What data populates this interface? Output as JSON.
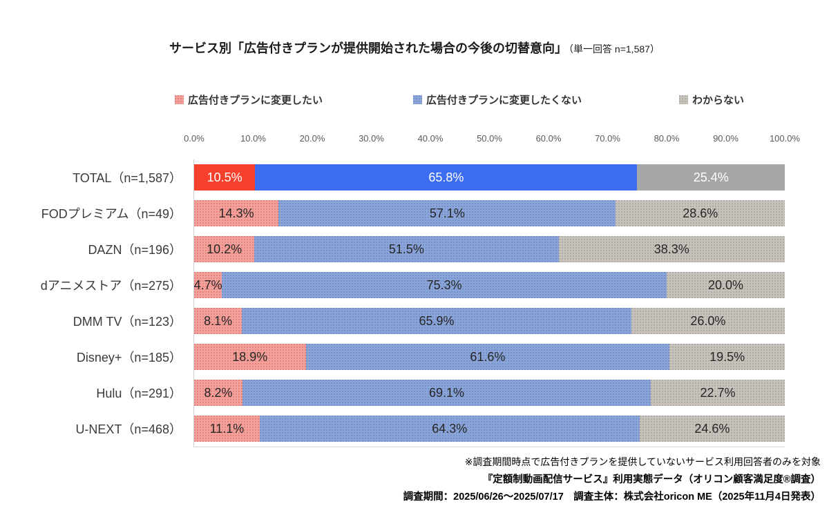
{
  "title": {
    "main": "サービス別「広告付きプランが提供開始された場合の今後の切替意向」",
    "suffix": "（単一回答 n=1,587）"
  },
  "legend": [
    {
      "key": "want",
      "label": "広告付きプランに変更したい"
    },
    {
      "key": "not_want",
      "label": "広告付きプランに変更したくない"
    },
    {
      "key": "unknown",
      "label": "わからない"
    }
  ],
  "colors": {
    "want_solid": "#f8412c",
    "not_want_solid": "#3c6cf0",
    "unknown_solid": "#a6a6a6",
    "want_light": "#f2a29d",
    "want_light_dot": "#e97f78",
    "not_want_light": "#8ca5d8",
    "not_want_light_dot": "#7290c9",
    "unknown_light": "#c7c3bc",
    "unknown_light_dot": "#aeaaa2"
  },
  "chart_data": {
    "type": "bar",
    "stacked": true,
    "orientation": "horizontal",
    "title": "サービス別「広告付きプランが提供開始された場合の今後の切替意向」（単一回答 n=1,587）",
    "highlight_category_index": 0,
    "x_axis": {
      "min": 0,
      "max": 100,
      "tick_step": 10,
      "tick_labels": [
        "0.0%",
        "10.0%",
        "20.0%",
        "30.0%",
        "40.0%",
        "50.0%",
        "60.0%",
        "70.0%",
        "80.0%",
        "90.0%",
        "100.0%"
      ]
    },
    "categories": [
      "TOTAL（n=1,587）",
      "FODプレミアム（n=49）",
      "DAZN（n=196）",
      "dアニメストア（n=275）",
      "DMM TV（n=123）",
      "Disney+（n=185）",
      "Hulu（n=291）",
      "U-NEXT（n=468）"
    ],
    "series": [
      {
        "name": "広告付きプランに変更したい",
        "values": [
          10.5,
          14.3,
          10.2,
          4.7,
          8.1,
          18.9,
          8.2,
          11.1
        ]
      },
      {
        "name": "広告付きプランに変更したくない",
        "values": [
          65.8,
          57.1,
          51.5,
          75.3,
          65.9,
          61.6,
          69.1,
          64.3
        ]
      },
      {
        "name": "わからない",
        "values": [
          25.4,
          28.6,
          38.3,
          20.0,
          26.0,
          19.5,
          22.7,
          24.6
        ]
      }
    ]
  },
  "footnotes": [
    "※調査期間時点で広告付きプランを提供していないサービス利用回答者のみを対象",
    "『定額制動画配信サービス』利用実態データ（オリコン顧客満足度®調査）",
    "調査期間：2025/06/26～2025/07/17　調査主体：株式会社oricon ME（2025年11月4日発表）"
  ]
}
